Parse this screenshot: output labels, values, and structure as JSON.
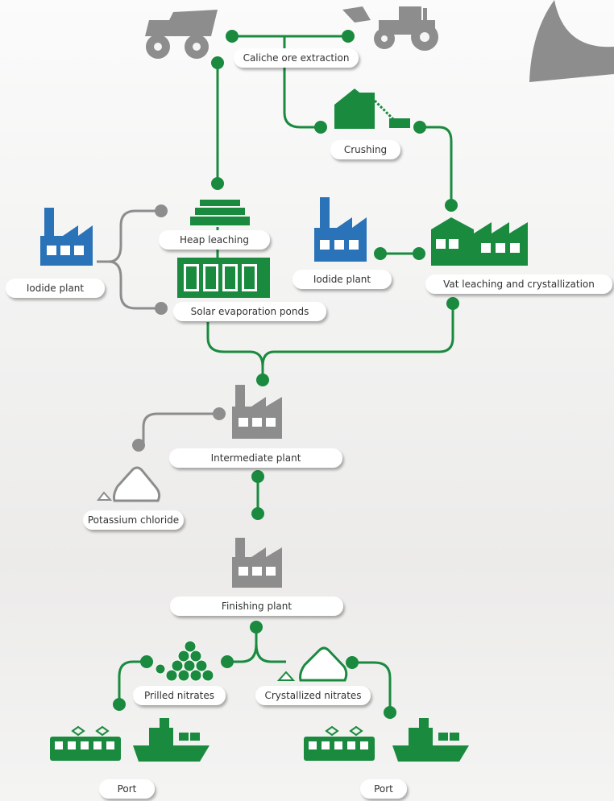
{
  "nodes": [
    {
      "label": "Caliche ore extraction"
    },
    {
      "label": "Crushing"
    },
    {
      "label": "Heap leaching"
    },
    {
      "label": "Iodide plant"
    },
    {
      "label": "Solar evaporation ponds"
    },
    {
      "label": "Iodide plant"
    },
    {
      "label": "Vat leaching and crystallization"
    },
    {
      "label": "Intermediate plant"
    },
    {
      "label": "Potassium chloride"
    },
    {
      "label": "Finishing plant"
    },
    {
      "label": "Prilled nitrates"
    },
    {
      "label": "Crystallized nitrates"
    },
    {
      "label": "Port"
    },
    {
      "label": "Port"
    }
  ]
}
